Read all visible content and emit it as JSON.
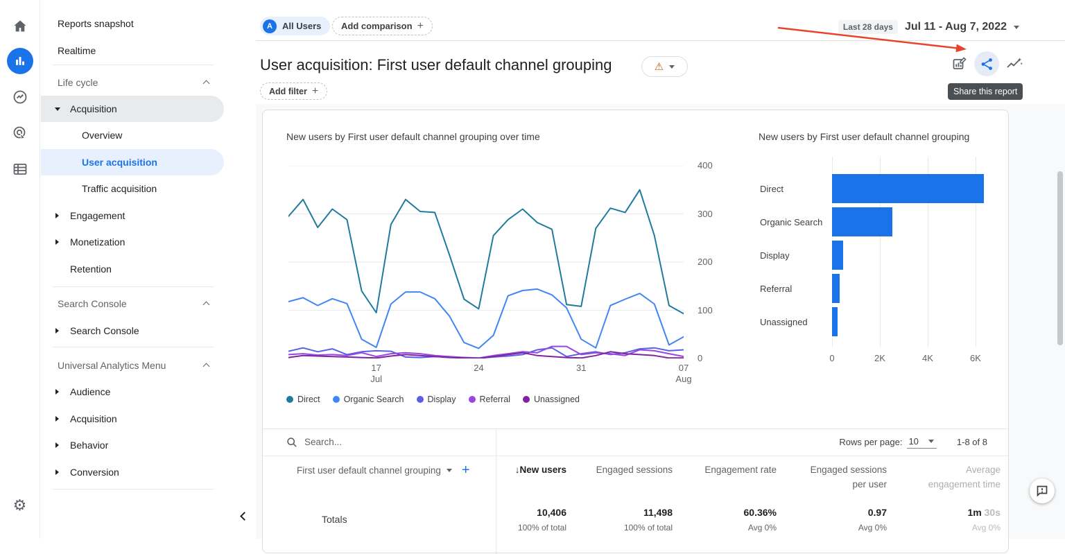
{
  "accent": {
    "blue": "#1a73e8",
    "light_blue_bg": "#e8f0fe",
    "warning_orange": "#c5610c",
    "annotation_red": "#e8432e"
  },
  "icons": {
    "gear": "⚙",
    "warning": "⚠",
    "plus": "+",
    "sort_desc": "↓",
    "avatar_letter": "A"
  },
  "sidebar": {
    "items": [
      {
        "label": "Reports snapshot"
      },
      {
        "label": "Realtime"
      },
      {
        "label": "Life cycle"
      },
      {
        "label": "Acquisition"
      },
      {
        "label": "Overview"
      },
      {
        "label": "User acquisition"
      },
      {
        "label": "Traffic acquisition"
      },
      {
        "label": "Engagement"
      },
      {
        "label": "Monetization"
      },
      {
        "label": "Retention"
      },
      {
        "label": "Search Console"
      },
      {
        "label": "Search Console"
      },
      {
        "label": "Universal Analytics Menu"
      },
      {
        "label": "Audience"
      },
      {
        "label": "Acquisition"
      },
      {
        "label": "Behavior"
      },
      {
        "label": "Conversion"
      }
    ]
  },
  "header": {
    "audience_chip": "All Users",
    "add_comparison": "Add comparison",
    "title": "User acquisition: First user default channel grouping",
    "add_filter": "Add filter",
    "date_range_type": "Last 28 days",
    "date_range": "Jul 11 - Aug 7, 2022",
    "share_tooltip": "Share this report"
  },
  "chart_data": [
    {
      "type": "line",
      "title": "New users by First user default channel grouping over time",
      "ylim": [
        0,
        400
      ],
      "yticks": [
        0,
        100,
        200,
        300,
        400
      ],
      "x_range": "Jul 11 - Aug 7, 2022 (daily)",
      "x_ticks": [
        {
          "index": 6,
          "label": "17",
          "sub": "Jul"
        },
        {
          "index": 13,
          "label": "24"
        },
        {
          "index": 20,
          "label": "31"
        },
        {
          "index": 27,
          "label": "07",
          "sub": "Aug"
        }
      ],
      "legend_position": "bottom",
      "grid": "horizontal",
      "series": [
        {
          "name": "Direct",
          "color": "#1f7a9c",
          "values": [
            295,
            330,
            272,
            310,
            288,
            140,
            95,
            278,
            330,
            305,
            303,
            215,
            123,
            103,
            255,
            288,
            310,
            282,
            268,
            112,
            108,
            270,
            312,
            303,
            350,
            255,
            110,
            93
          ]
        },
        {
          "name": "Organic Search",
          "color": "#4285f4",
          "values": [
            118,
            126,
            110,
            124,
            114,
            40,
            23,
            113,
            138,
            138,
            124,
            88,
            33,
            21,
            48,
            130,
            141,
            144,
            132,
            105,
            40,
            22,
            110,
            123,
            135,
            113,
            28,
            45
          ]
        },
        {
          "name": "Display",
          "color": "#5b5fe8",
          "values": [
            15,
            22,
            14,
            20,
            8,
            14,
            16,
            15,
            3,
            2,
            4,
            3,
            2,
            1,
            3,
            5,
            8,
            18,
            22,
            4,
            10,
            14,
            8,
            12,
            20,
            22,
            16,
            18
          ]
        },
        {
          "name": "Referral",
          "color": "#9747dd",
          "values": [
            8,
            10,
            7,
            8,
            6,
            12,
            4,
            10,
            12,
            10,
            6,
            4,
            2,
            1,
            6,
            10,
            14,
            12,
            25,
            25,
            8,
            12,
            10,
            6,
            18,
            16,
            10,
            4
          ]
        },
        {
          "name": "Unassigned",
          "color": "#7e24a1",
          "values": [
            2,
            6,
            5,
            4,
            3,
            2,
            1,
            5,
            8,
            6,
            4,
            2,
            1,
            0,
            4,
            8,
            12,
            6,
            4,
            2,
            1,
            6,
            14,
            10,
            8,
            6,
            1,
            1
          ]
        }
      ]
    },
    {
      "type": "bar",
      "orientation": "horizontal",
      "title": "New users by First user default channel grouping",
      "categories": [
        "Direct",
        "Organic Search",
        "Display",
        "Referral",
        "Unassigned"
      ],
      "values": [
        6350,
        2520,
        470,
        310,
        230
      ],
      "bar_color": "#1a73e8",
      "xticks": [
        {
          "v": 0,
          "label": "0"
        },
        {
          "v": 2000,
          "label": "2K"
        },
        {
          "v": 4000,
          "label": "4K"
        },
        {
          "v": 6000,
          "label": "6K"
        }
      ],
      "xlim": [
        0,
        7000
      ]
    }
  ],
  "table": {
    "search_placeholder": "Search...",
    "rows_per_page_label": "Rows per page:",
    "rows_per_page_value": "10",
    "range_label": "1-8 of 8",
    "dimension_header": "First user default channel grouping",
    "columns": [
      {
        "l1": "New users"
      },
      {
        "l1": "Engaged sessions"
      },
      {
        "l1": "Engagement rate"
      },
      {
        "l1": "Engaged sessions",
        "l2": "per user"
      },
      {
        "l1": "Average",
        "l2": "engagement time"
      }
    ],
    "totals": {
      "label": "Totals",
      "cells": [
        {
          "v": "10,406",
          "s": "100% of total"
        },
        {
          "v": "11,498",
          "s": "100% of total"
        },
        {
          "v": "60.36%",
          "s": "Avg 0%"
        },
        {
          "v": "0.97",
          "s": "Avg 0%"
        },
        {
          "v1": "1m",
          "v2": "30s",
          "s": "Avg 0%"
        }
      ]
    }
  }
}
